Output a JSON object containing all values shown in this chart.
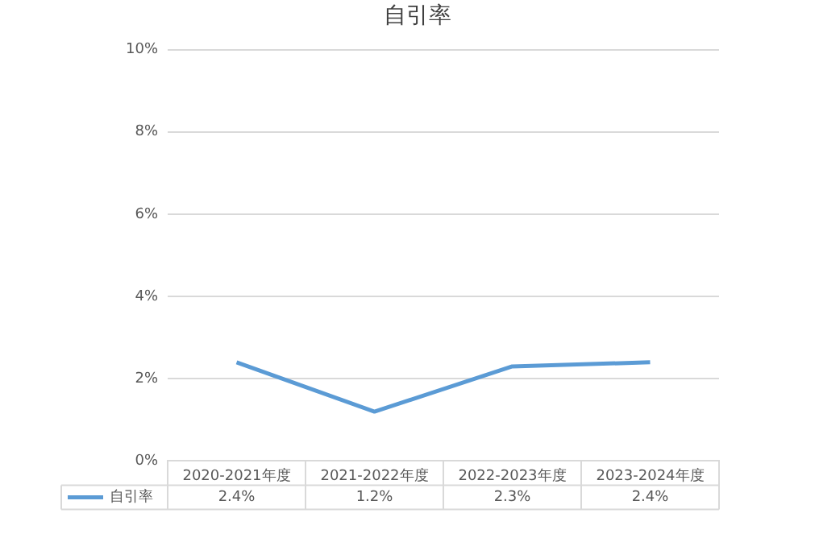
{
  "chart_data": {
    "type": "line",
    "title": "自引率",
    "categories": [
      "2020-2021年度",
      "2021-2022年度",
      "2022-2023年度",
      "2023-2024年度"
    ],
    "series": [
      {
        "name": "自引率",
        "color": "#5b9bd5",
        "values": [
          2.4,
          1.2,
          2.3,
          2.4
        ],
        "value_labels": [
          "2.4%",
          "1.2%",
          "2.3%",
          "2.4%"
        ]
      }
    ],
    "ylim": [
      0,
      10
    ],
    "yticks": [
      {
        "value": 0,
        "label": "0%"
      },
      {
        "value": 2,
        "label": "2%"
      },
      {
        "value": 4,
        "label": "4%"
      },
      {
        "value": 6,
        "label": "6%"
      },
      {
        "value": 8,
        "label": "8%"
      },
      {
        "value": 10,
        "label": "10%"
      }
    ],
    "grid": "y",
    "legend": "bottom",
    "marker": "none",
    "line_style": "solid"
  }
}
